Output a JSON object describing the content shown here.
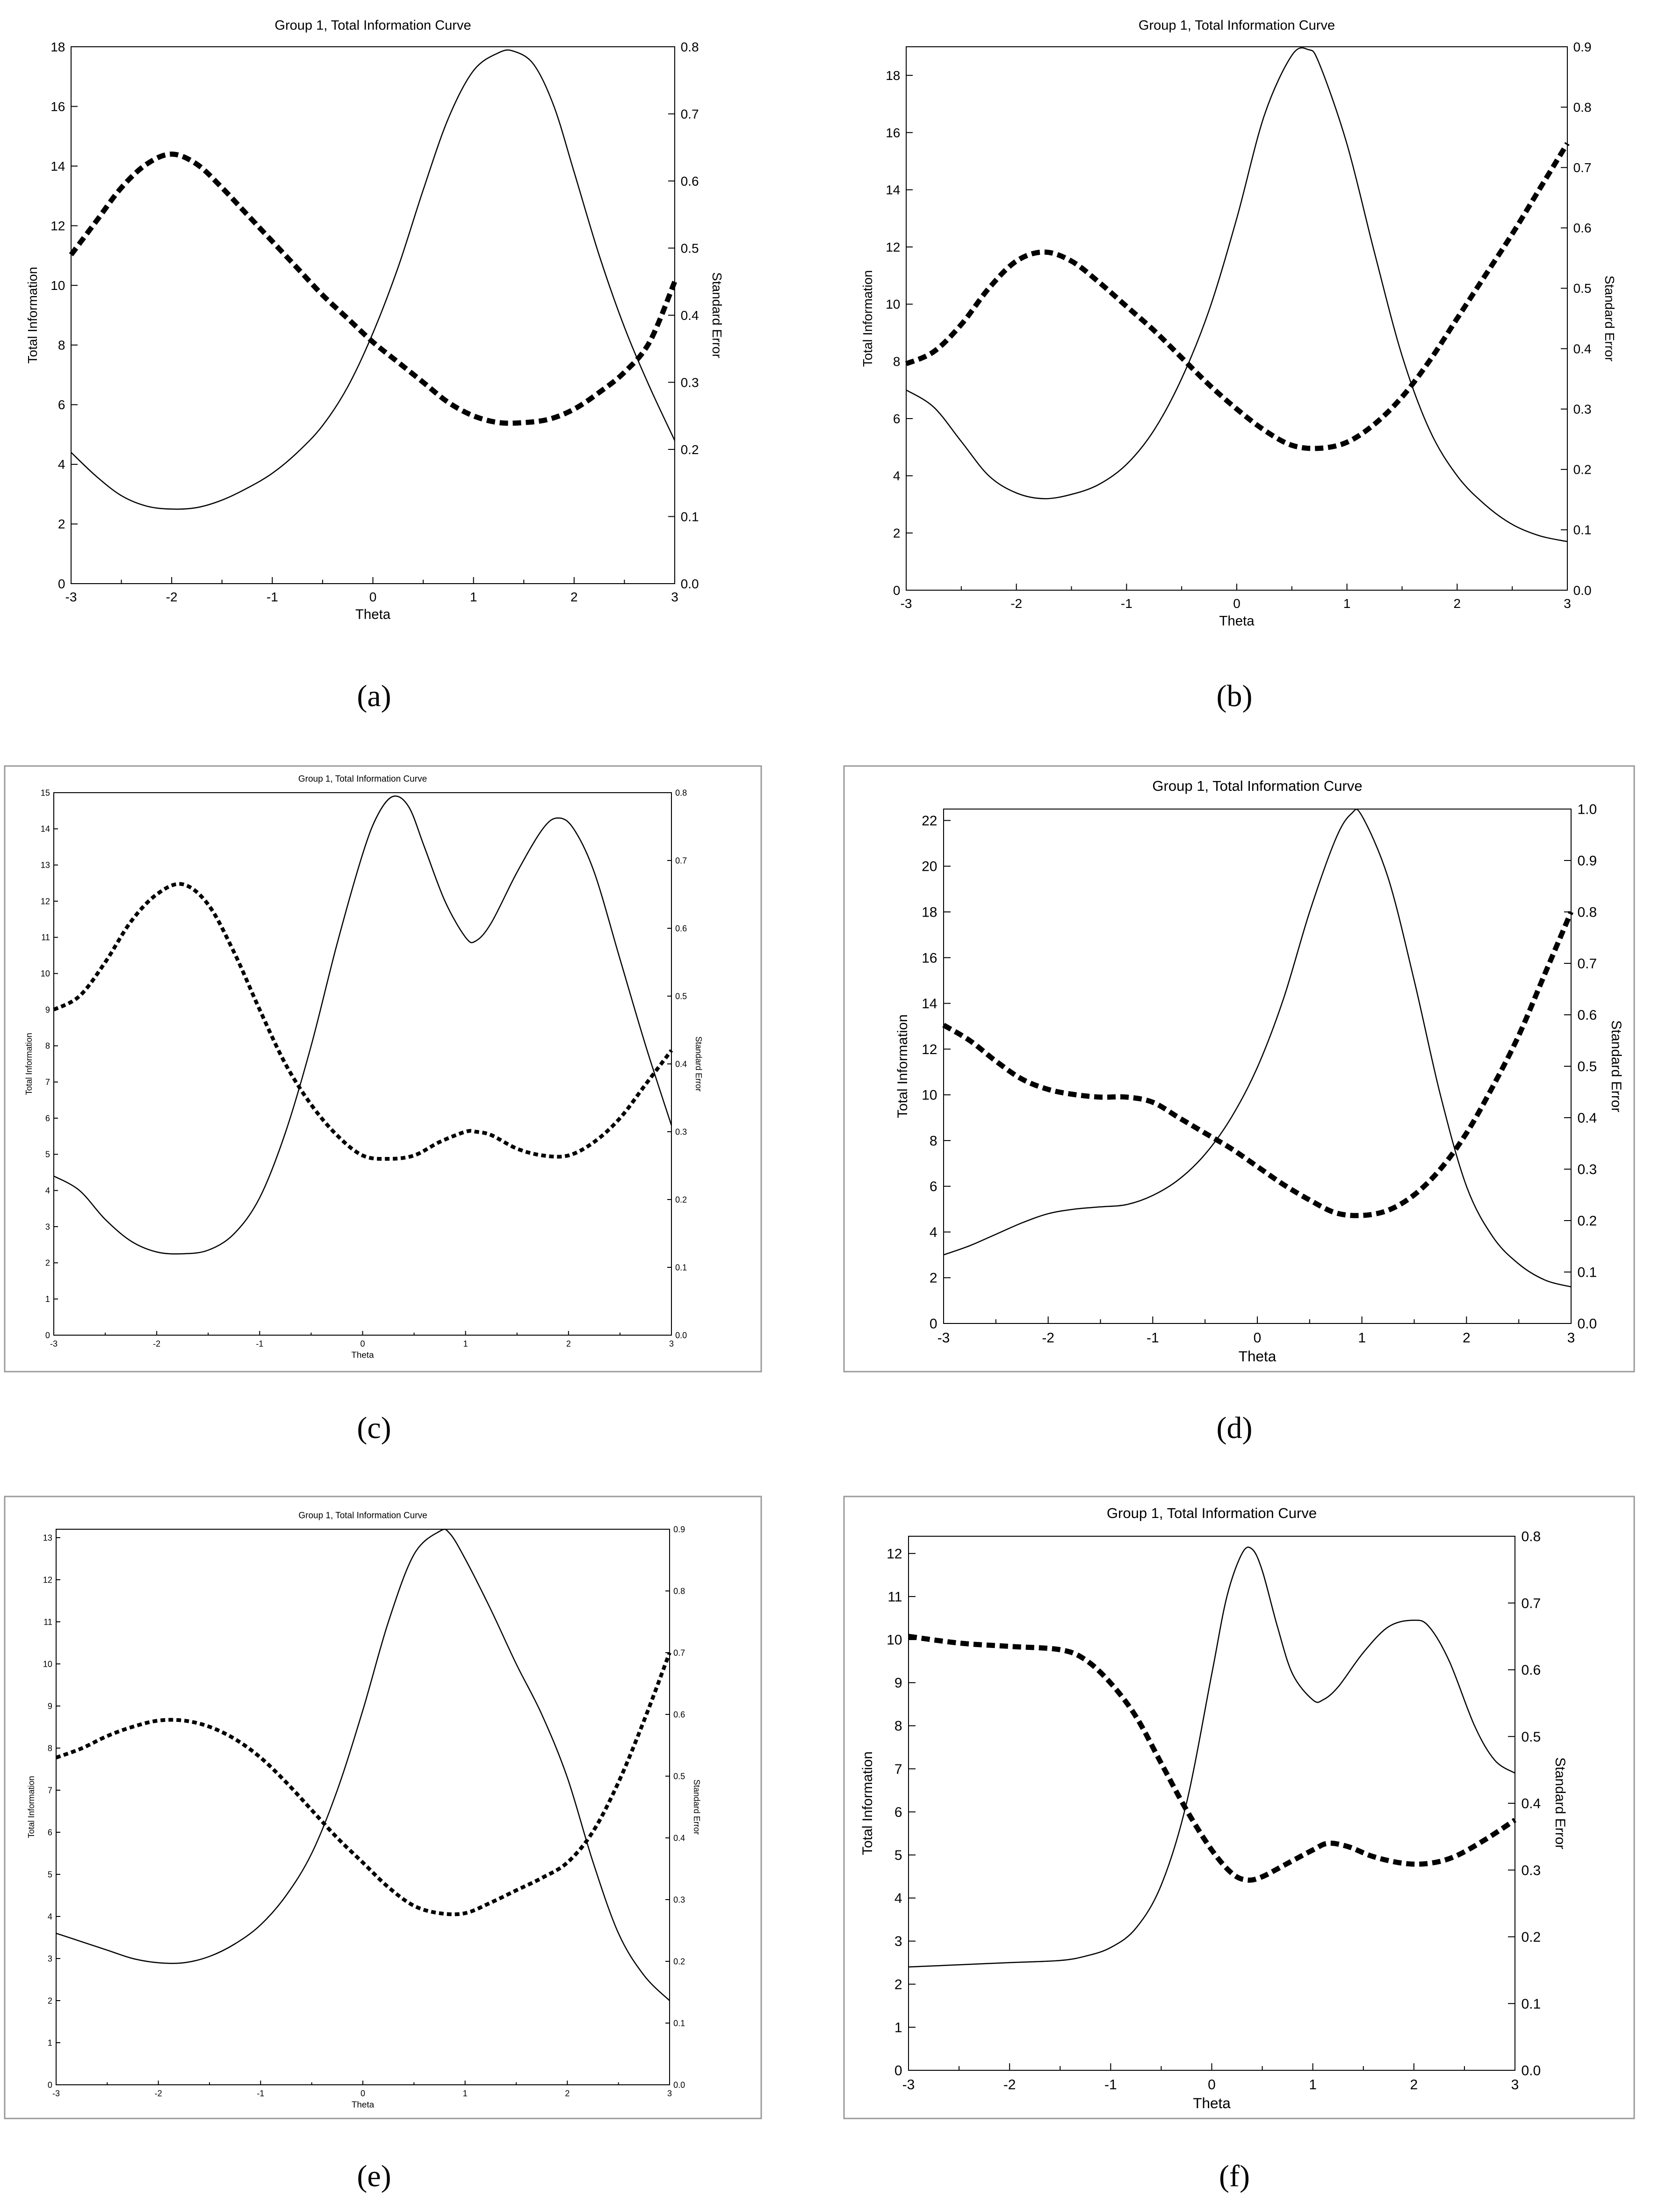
{
  "figure": {
    "captions": [
      "(a)",
      "(b)",
      "(c)",
      "(d)",
      "(e)",
      "(f)"
    ]
  },
  "colors": {
    "line": "#000000",
    "frame": "#9a9a9a"
  },
  "chart_data": [
    {
      "type": "line",
      "title": "Group 1, Total Information Curve",
      "xlabel": "Theta",
      "ylabel": "Total Information",
      "y2label": "Standard Error",
      "xlim": [
        -3,
        3
      ],
      "ylim": [
        0,
        18
      ],
      "y2lim": [
        0,
        0.8
      ],
      "xticks": [
        -3,
        -2,
        -1,
        0,
        1,
        2,
        3
      ],
      "yticks": [
        0,
        2,
        4,
        6,
        8,
        10,
        12,
        14,
        16,
        18
      ],
      "y2ticks": [
        "0.0",
        "0.1",
        "0.2",
        "0.3",
        "0.4",
        "0.5",
        "0.6",
        "0.7",
        "0.8"
      ],
      "grid": false,
      "series": [
        {
          "axis": "left",
          "style": "solid",
          "x": [
            -3,
            -2.75,
            -2.5,
            -2.25,
            -2,
            -1.75,
            -1.5,
            -1.25,
            -1,
            -0.75,
            -0.5,
            -0.25,
            0,
            0.25,
            0.5,
            0.75,
            1,
            1.25,
            1.4,
            1.6,
            1.8,
            2,
            2.25,
            2.5,
            2.75,
            3
          ],
          "values": [
            4.4,
            3.6,
            2.95,
            2.6,
            2.5,
            2.55,
            2.8,
            3.2,
            3.7,
            4.4,
            5.3,
            6.6,
            8.4,
            10.6,
            13.2,
            15.6,
            17.2,
            17.8,
            17.85,
            17.4,
            16.0,
            13.8,
            11.0,
            8.6,
            6.6,
            4.8
          ]
        },
        {
          "axis": "right",
          "style": "dashed",
          "x": [
            -3,
            -2.75,
            -2.5,
            -2.25,
            -2,
            -1.75,
            -1.5,
            -1.25,
            -1,
            -0.75,
            -0.5,
            -0.25,
            0,
            0.25,
            0.5,
            0.75,
            1,
            1.25,
            1.5,
            1.75,
            2,
            2.25,
            2.5,
            2.75,
            3
          ],
          "values": [
            0.49,
            0.54,
            0.59,
            0.625,
            0.64,
            0.625,
            0.59,
            0.55,
            0.51,
            0.47,
            0.43,
            0.395,
            0.36,
            0.33,
            0.3,
            0.27,
            0.25,
            0.24,
            0.24,
            0.245,
            0.26,
            0.285,
            0.315,
            0.36,
            0.45
          ]
        }
      ]
    },
    {
      "type": "line",
      "title": "Group 1, Total Information Curve",
      "xlabel": "Theta",
      "ylabel": "Total Information",
      "y2label": "Standard Error",
      "xlim": [
        -3,
        3
      ],
      "ylim": [
        0,
        19
      ],
      "y2lim": [
        0,
        0.9
      ],
      "xticks": [
        -3,
        -2,
        -1,
        0,
        1,
        2,
        3
      ],
      "yticks": [
        0,
        2,
        4,
        6,
        8,
        10,
        12,
        14,
        16,
        18
      ],
      "y2ticks": [
        "0.0",
        "0.1",
        "0.2",
        "0.3",
        "0.4",
        "0.5",
        "0.6",
        "0.7",
        "0.8",
        "0.9"
      ],
      "grid": false,
      "series": [
        {
          "axis": "left",
          "style": "solid",
          "x": [
            -3,
            -2.75,
            -2.5,
            -2.25,
            -2,
            -1.75,
            -1.5,
            -1.25,
            -1,
            -0.75,
            -0.5,
            -0.25,
            0,
            0.25,
            0.5,
            0.65,
            0.75,
            1,
            1.25,
            1.5,
            1.75,
            2,
            2.25,
            2.5,
            2.75,
            3
          ],
          "values": [
            7.0,
            6.4,
            5.2,
            4.0,
            3.4,
            3.2,
            3.35,
            3.7,
            4.4,
            5.6,
            7.4,
            9.8,
            13.0,
            16.6,
            18.7,
            18.9,
            18.4,
            15.6,
            11.8,
            8.2,
            5.6,
            4.0,
            3.0,
            2.3,
            1.9,
            1.7
          ]
        },
        {
          "axis": "right",
          "style": "dashed",
          "x": [
            -3,
            -2.75,
            -2.5,
            -2.25,
            -2,
            -1.75,
            -1.5,
            -1.25,
            -1,
            -0.75,
            -0.5,
            -0.25,
            0,
            0.25,
            0.5,
            0.75,
            1,
            1.25,
            1.5,
            1.75,
            2,
            2.25,
            2.5,
            2.75,
            3
          ],
          "values": [
            0.375,
            0.395,
            0.44,
            0.5,
            0.545,
            0.56,
            0.545,
            0.51,
            0.47,
            0.43,
            0.385,
            0.34,
            0.3,
            0.265,
            0.24,
            0.235,
            0.245,
            0.275,
            0.32,
            0.38,
            0.45,
            0.52,
            0.59,
            0.665,
            0.74
          ]
        }
      ]
    },
    {
      "type": "line",
      "title": "Group 1, Total Information Curve",
      "xlabel": "Theta",
      "ylabel": "Total Information",
      "y2label": "Standard Error",
      "xlim": [
        -3,
        3
      ],
      "ylim": [
        0,
        15
      ],
      "y2lim": [
        0,
        0.8
      ],
      "xticks": [
        -3,
        -2,
        -1,
        0,
        1,
        2,
        3
      ],
      "yticks": [
        0,
        1,
        2,
        3,
        4,
        5,
        6,
        7,
        8,
        9,
        10,
        11,
        12,
        13,
        14,
        15
      ],
      "y2ticks": [
        "0.0",
        "0.1",
        "0.2",
        "0.3",
        "0.4",
        "0.5",
        "0.6",
        "0.7",
        "0.8"
      ],
      "grid": false,
      "series": [
        {
          "axis": "left",
          "style": "solid",
          "x": [
            -3,
            -2.75,
            -2.5,
            -2.25,
            -2,
            -1.75,
            -1.5,
            -1.25,
            -1,
            -0.75,
            -0.5,
            -0.25,
            0,
            0.15,
            0.3,
            0.45,
            0.6,
            0.8,
            1.0,
            1.1,
            1.25,
            1.5,
            1.75,
            1.9,
            2.05,
            2.25,
            2.5,
            2.75,
            3
          ],
          "values": [
            4.4,
            4.0,
            3.2,
            2.6,
            2.3,
            2.25,
            2.35,
            2.8,
            3.8,
            5.6,
            8.0,
            10.8,
            13.3,
            14.4,
            14.9,
            14.6,
            13.5,
            12.0,
            11.0,
            10.9,
            11.4,
            12.8,
            14.0,
            14.3,
            14.0,
            12.8,
            10.4,
            8.0,
            5.8
          ]
        },
        {
          "axis": "right",
          "style": "dashed",
          "x": [
            -3,
            -2.75,
            -2.5,
            -2.25,
            -2,
            -1.75,
            -1.5,
            -1.25,
            -1,
            -0.75,
            -0.5,
            -0.25,
            0,
            0.25,
            0.5,
            0.75,
            1.0,
            1.1,
            1.25,
            1.5,
            1.75,
            2.0,
            2.25,
            2.5,
            2.75,
            3
          ],
          "values": [
            0.48,
            0.5,
            0.55,
            0.61,
            0.65,
            0.665,
            0.635,
            0.565,
            0.48,
            0.4,
            0.34,
            0.295,
            0.265,
            0.26,
            0.265,
            0.285,
            0.3,
            0.3,
            0.295,
            0.275,
            0.265,
            0.265,
            0.285,
            0.32,
            0.37,
            0.42
          ]
        }
      ]
    },
    {
      "type": "line",
      "title": "Group 1, Total Information Curve",
      "xlabel": "Theta",
      "ylabel": "Total Information",
      "y2label": "Standard Error",
      "xlim": [
        -3,
        3
      ],
      "ylim": [
        0,
        22.5
      ],
      "y2lim": [
        0,
        1.0
      ],
      "xticks": [
        -3,
        -2,
        -1,
        0,
        1,
        2,
        3
      ],
      "yticks": [
        0,
        2,
        4,
        6,
        8,
        10,
        12,
        14,
        16,
        18,
        20,
        22
      ],
      "y2ticks": [
        "0.0",
        "0.1",
        "0.2",
        "0.3",
        "0.4",
        "0.5",
        "0.6",
        "0.7",
        "0.8",
        "0.9",
        "1.0"
      ],
      "grid": false,
      "series": [
        {
          "axis": "left",
          "style": "solid",
          "x": [
            -3,
            -2.75,
            -2.5,
            -2.25,
            -2,
            -1.75,
            -1.5,
            -1.25,
            -1,
            -0.75,
            -0.5,
            -0.25,
            0,
            0.25,
            0.5,
            0.75,
            0.9,
            1.0,
            1.25,
            1.5,
            1.75,
            2.0,
            2.25,
            2.5,
            2.75,
            3
          ],
          "values": [
            3.0,
            3.4,
            3.9,
            4.4,
            4.8,
            5.0,
            5.1,
            5.2,
            5.6,
            6.3,
            7.4,
            9.0,
            11.2,
            14.2,
            18.0,
            21.2,
            22.3,
            22.2,
            19.5,
            15.0,
            10.0,
            6.0,
            3.8,
            2.6,
            1.9,
            1.6
          ]
        },
        {
          "axis": "right",
          "style": "dashed",
          "x": [
            -3,
            -2.75,
            -2.5,
            -2.25,
            -2,
            -1.75,
            -1.5,
            -1.25,
            -1,
            -0.75,
            -0.5,
            -0.25,
            0,
            0.25,
            0.5,
            0.75,
            1.0,
            1.25,
            1.5,
            1.75,
            2.0,
            2.25,
            2.5,
            2.75,
            3
          ],
          "values": [
            0.58,
            0.55,
            0.51,
            0.475,
            0.455,
            0.445,
            0.44,
            0.44,
            0.43,
            0.4,
            0.37,
            0.34,
            0.305,
            0.27,
            0.24,
            0.215,
            0.21,
            0.22,
            0.25,
            0.3,
            0.37,
            0.46,
            0.56,
            0.68,
            0.8
          ]
        }
      ]
    },
    {
      "type": "line",
      "title": "Group 1, Total Information Curve",
      "xlabel": "Theta",
      "ylabel": "Total Information",
      "y2label": "Standard Error",
      "xlim": [
        -3,
        3
      ],
      "ylim": [
        0,
        13.2
      ],
      "y2lim": [
        0,
        0.9
      ],
      "xticks": [
        -3,
        -2,
        -1,
        0,
        1,
        2,
        3
      ],
      "yticks": [
        0,
        1,
        2,
        3,
        4,
        5,
        6,
        7,
        8,
        9,
        10,
        11,
        12,
        13
      ],
      "y2ticks": [
        "0.0",
        "0.1",
        "0.2",
        "0.3",
        "0.4",
        "0.5",
        "0.6",
        "0.7",
        "0.8",
        "0.9"
      ],
      "grid": false,
      "series": [
        {
          "axis": "left",
          "style": "solid",
          "x": [
            -3,
            -2.75,
            -2.5,
            -2.25,
            -2,
            -1.75,
            -1.5,
            -1.25,
            -1,
            -0.75,
            -0.5,
            -0.25,
            0,
            0.25,
            0.5,
            0.75,
            0.85,
            1.0,
            1.25,
            1.5,
            1.75,
            2.0,
            2.25,
            2.5,
            2.75,
            3
          ],
          "values": [
            3.6,
            3.4,
            3.2,
            3.0,
            2.9,
            2.9,
            3.05,
            3.35,
            3.8,
            4.5,
            5.5,
            7.0,
            8.9,
            11.0,
            12.6,
            13.15,
            13.1,
            12.5,
            11.3,
            10.0,
            8.8,
            7.3,
            5.3,
            3.6,
            2.6,
            2.0
          ]
        },
        {
          "axis": "right",
          "style": "dashed",
          "x": [
            -3,
            -2.75,
            -2.5,
            -2.25,
            -2,
            -1.75,
            -1.5,
            -1.25,
            -1,
            -0.75,
            -0.5,
            -0.25,
            0,
            0.25,
            0.5,
            0.75,
            1.0,
            1.25,
            1.5,
            1.75,
            2.0,
            2.25,
            2.5,
            2.75,
            3
          ],
          "values": [
            0.53,
            0.545,
            0.565,
            0.58,
            0.59,
            0.59,
            0.58,
            0.56,
            0.53,
            0.49,
            0.445,
            0.4,
            0.36,
            0.32,
            0.29,
            0.278,
            0.278,
            0.295,
            0.315,
            0.335,
            0.36,
            0.41,
            0.49,
            0.59,
            0.7
          ]
        }
      ]
    },
    {
      "type": "line",
      "title": "Group 1, Total Information Curve",
      "xlabel": "Theta",
      "ylabel": "Total Information",
      "y2label": "Standard Error",
      "xlim": [
        -3,
        3
      ],
      "ylim": [
        0,
        12.4
      ],
      "y2lim": [
        0,
        0.8
      ],
      "xticks": [
        -3,
        -2,
        -1,
        0,
        1,
        2,
        3
      ],
      "yticks": [
        0,
        1,
        2,
        3,
        4,
        5,
        6,
        7,
        8,
        9,
        10,
        11,
        12
      ],
      "y2ticks": [
        "0.0",
        "0.1",
        "0.2",
        "0.3",
        "0.4",
        "0.5",
        "0.6",
        "0.7",
        "0.8"
      ],
      "grid": false,
      "series": [
        {
          "axis": "left",
          "style": "solid",
          "x": [
            -3,
            -2.5,
            -2.0,
            -1.5,
            -1.25,
            -1.0,
            -0.75,
            -0.5,
            -0.25,
            0,
            0.15,
            0.3,
            0.4,
            0.5,
            0.65,
            0.8,
            1.0,
            1.1,
            1.25,
            1.5,
            1.75,
            2.0,
            2.15,
            2.35,
            2.6,
            2.8,
            3
          ],
          "values": [
            2.4,
            2.45,
            2.5,
            2.55,
            2.65,
            2.85,
            3.3,
            4.3,
            6.2,
            9.2,
            11.0,
            12.0,
            12.1,
            11.6,
            10.3,
            9.2,
            8.6,
            8.6,
            8.9,
            9.7,
            10.3,
            10.45,
            10.3,
            9.5,
            8.0,
            7.2,
            6.9
          ]
        },
        {
          "axis": "right",
          "style": "dashed",
          "x": [
            -3,
            -2.5,
            -2.0,
            -1.5,
            -1.25,
            -1.0,
            -0.75,
            -0.5,
            -0.25,
            0,
            0.2,
            0.35,
            0.5,
            0.75,
            1.0,
            1.15,
            1.35,
            1.6,
            1.9,
            2.15,
            2.4,
            2.7,
            3
          ],
          "values": [
            0.65,
            0.64,
            0.635,
            0.63,
            0.615,
            0.58,
            0.53,
            0.46,
            0.39,
            0.33,
            0.295,
            0.285,
            0.29,
            0.31,
            0.33,
            0.34,
            0.335,
            0.32,
            0.31,
            0.31,
            0.32,
            0.345,
            0.375
          ]
        }
      ]
    }
  ]
}
